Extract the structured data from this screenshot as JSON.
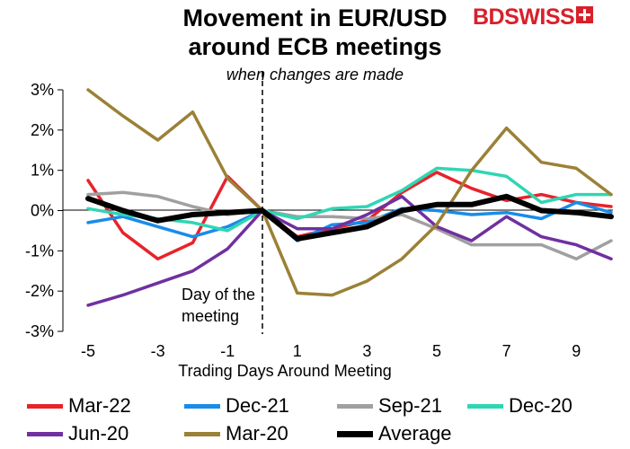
{
  "header": {
    "title_line1": "Movement in EUR/USD",
    "title_line2": "around ECB meetings",
    "subtitle": "when changes are made",
    "logo_text": "BDSWISS"
  },
  "chart_data": {
    "type": "line",
    "title": "Movement in EUR/USD around ECB meetings",
    "subtitle": "when changes are made",
    "xlabel": "Trading Days Around Meeting",
    "ylabel": "",
    "x": [
      -5,
      -4,
      -3,
      -2,
      -1,
      0,
      1,
      2,
      3,
      4,
      5,
      6,
      7,
      8,
      9,
      10
    ],
    "xticks": [
      -5,
      -3,
      -1,
      1,
      3,
      5,
      7,
      9
    ],
    "xtick_labels": [
      "-5",
      "-3",
      "-1",
      "1",
      "3",
      "5",
      "7",
      "9"
    ],
    "xlim": [
      -5,
      10
    ],
    "ylim": [
      -3,
      3
    ],
    "yticks": [
      -3,
      -2,
      -1,
      0,
      1,
      2,
      3
    ],
    "ytick_labels": [
      "-3%",
      "-2%",
      "-1%",
      "0%",
      "1%",
      "2%",
      "3%"
    ],
    "grid": false,
    "legend_position": "bottom",
    "vertical_marker": {
      "x": 0,
      "style": "dashed",
      "label_line1": "Day of the",
      "label_line2": "meeting"
    },
    "series": [
      {
        "name": "Mar-22",
        "color": "#e8232a",
        "width": 3.5,
        "values": [
          0.75,
          -0.55,
          -1.2,
          -0.8,
          0.85,
          0.0,
          -0.65,
          -0.45,
          -0.25,
          0.45,
          0.95,
          0.55,
          0.25,
          0.4,
          0.2,
          0.1
        ]
      },
      {
        "name": "Dec-21",
        "color": "#1a8ce8",
        "width": 3.5,
        "values": [
          -0.3,
          -0.15,
          -0.4,
          -0.65,
          -0.4,
          0.0,
          -0.75,
          -0.35,
          -0.3,
          0.05,
          0.0,
          -0.1,
          -0.05,
          -0.2,
          0.2,
          -0.05
        ]
      },
      {
        "name": "Sep-21",
        "color": "#a0a0a0",
        "width": 3.5,
        "values": [
          0.4,
          0.45,
          0.35,
          0.1,
          -0.1,
          0.0,
          -0.15,
          -0.15,
          -0.2,
          -0.1,
          -0.45,
          -0.85,
          -0.85,
          -0.85,
          -1.2,
          -0.75
        ]
      },
      {
        "name": "Dec-20",
        "color": "#2fd6b4",
        "width": 3.5,
        "values": [
          0.05,
          -0.1,
          -0.2,
          -0.3,
          -0.5,
          0.0,
          -0.2,
          0.05,
          0.1,
          0.5,
          1.05,
          1.0,
          0.85,
          0.2,
          0.4,
          0.4
        ]
      },
      {
        "name": "Jun-20",
        "color": "#7030a0",
        "width": 3.5,
        "values": [
          -2.35,
          -2.1,
          -1.8,
          -1.5,
          -0.95,
          0.0,
          -0.45,
          -0.45,
          -0.1,
          0.35,
          -0.4,
          -0.75,
          -0.15,
          -0.65,
          -0.85,
          -1.2
        ]
      },
      {
        "name": "Mar-20",
        "color": "#9b8136",
        "width": 3.5,
        "values": [
          3.0,
          2.35,
          1.75,
          2.45,
          0.8,
          0.0,
          -2.05,
          -2.1,
          -1.75,
          -1.2,
          -0.35,
          1.0,
          2.05,
          1.2,
          1.05,
          0.4
        ]
      },
      {
        "name": "Average",
        "color": "#000000",
        "width": 6,
        "values": [
          0.3,
          0.0,
          -0.25,
          -0.1,
          -0.05,
          0.0,
          -0.7,
          -0.55,
          -0.4,
          0.0,
          0.15,
          0.15,
          0.35,
          0.0,
          -0.05,
          -0.15
        ]
      }
    ]
  }
}
